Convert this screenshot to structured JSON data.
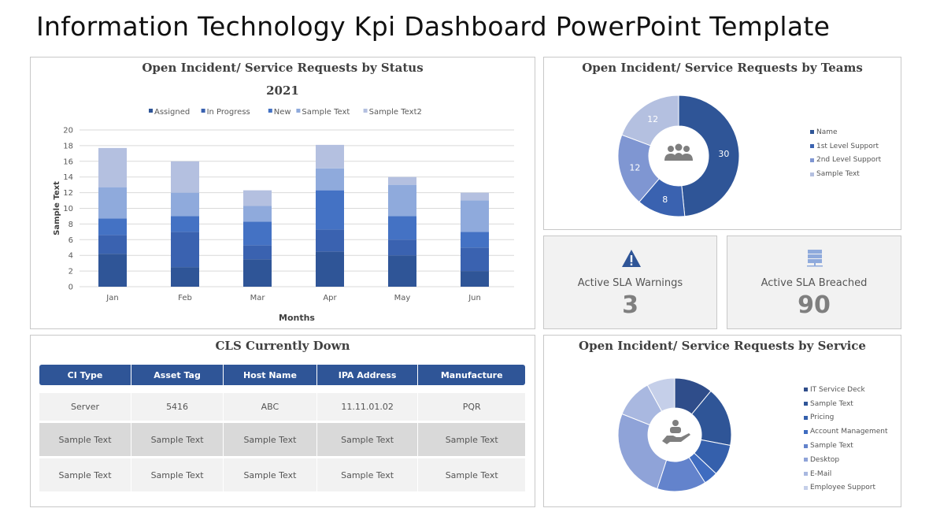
{
  "title": "Information Technology Kpi Dashboard PowerPoint Template",
  "status_chart": {
    "title": "Open Incident/  Service Requests by Status",
    "subtitle": "2021"
  },
  "teams_chart": {
    "title": "Open Incident/  Service Requests by Teams"
  },
  "service_chart": {
    "title": "Open Incident/  Service Requests by Service"
  },
  "kpis": [
    {
      "label": "Active SLA Warnings",
      "value": "3",
      "icon": "warning-triangle-icon"
    },
    {
      "label": "Active SLA Breached",
      "value": "90",
      "icon": "server-icon"
    }
  ],
  "cls": {
    "title": "CLS Currently Down",
    "headers": [
      "CI Type",
      "Asset Tag",
      "Host Name",
      "IPA Address",
      "Manufacture"
    ],
    "rows": [
      [
        "Server",
        "5416",
        "ABC",
        "11.11.01.02",
        "PQR"
      ],
      [
        "Sample Text",
        "Sample Text",
        "Sample Text",
        "Sample Text",
        "Sample Text"
      ],
      [
        "Sample Text",
        "Sample Text",
        "Sample Text",
        "Sample Text",
        "Sample Text"
      ]
    ]
  },
  "colors": {
    "accent": "#2f5597"
  },
  "chart_data": [
    {
      "type": "bar",
      "stacked": true,
      "title": "Open Incident/  Service Requests by Status",
      "subtitle": "2021",
      "xlabel": "Months",
      "ylabel": "Sample Text",
      "ylim": [
        0,
        20
      ],
      "yticks": [
        0,
        2,
        4,
        6,
        8,
        10,
        12,
        14,
        16,
        18,
        20
      ],
      "grid": true,
      "legend": "top",
      "categories": [
        "Jan",
        "Feb",
        "Mar",
        "Apr",
        "May",
        "Jun"
      ],
      "series": [
        {
          "name": "Assigned",
          "color": "#2f5597",
          "values": [
            4.2,
            2.5,
            3.5,
            4.5,
            4,
            2
          ]
        },
        {
          "name": "In Progress",
          "color": "#3a62b0",
          "values": [
            2.4,
            4.5,
            1.8,
            2.8,
            2,
            3
          ]
        },
        {
          "name": "New",
          "color": "#4472c4",
          "values": [
            2.1,
            2,
            3,
            5,
            3,
            2
          ]
        },
        {
          "name": "Sample Text",
          "color": "#8faadc",
          "values": [
            4,
            3,
            2,
            2.8,
            4,
            4
          ]
        },
        {
          "name": "Sample Text2",
          "color": "#b4c0e0",
          "values": [
            5,
            4,
            2,
            3,
            1,
            1
          ]
        }
      ]
    },
    {
      "type": "pie",
      "donut": true,
      "legend": "right",
      "center_icon": "users-group-icon",
      "labels": [
        "Name",
        "1st Level Support",
        "2nd Level Support",
        "Sample Text"
      ],
      "values": [
        30,
        8,
        12,
        12
      ],
      "show_values": true,
      "colors": [
        "#2f5597",
        "#3a62b0",
        "#7f96d2",
        "#b4c0e0"
      ]
    },
    {
      "type": "pie",
      "donut": true,
      "legend": "right",
      "center_icon": "hand-user-icon",
      "labels": [
        "IT Service Deck",
        "Sample Text",
        "Pricing",
        "Account Management",
        "Sample Text",
        "Desktop",
        "E-Mail",
        "Employee Support"
      ],
      "values": [
        11,
        17,
        9,
        4,
        14,
        26,
        11,
        8
      ],
      "colors": [
        "#2f4d8a",
        "#2f5597",
        "#3560ac",
        "#3f6cc0",
        "#6383cc",
        "#8fa3d8",
        "#a9b8e0",
        "#c5cfe9"
      ]
    }
  ]
}
